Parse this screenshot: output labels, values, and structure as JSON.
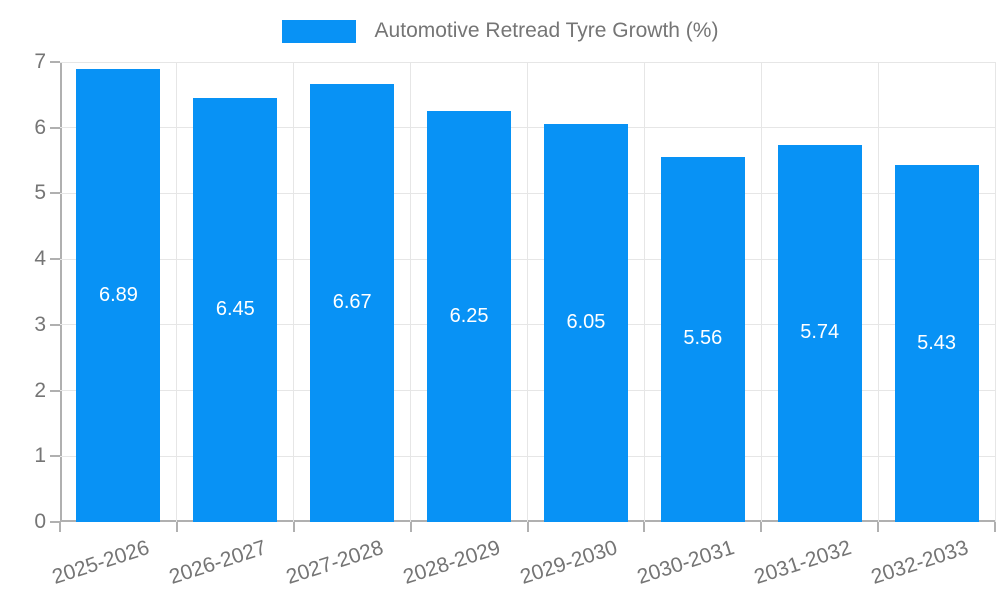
{
  "chart_data": {
    "type": "bar",
    "title": "Automotive Retread Tyre Growth (%)",
    "legend_position": "top",
    "categories": [
      "2025-2026",
      "2026-2027",
      "2027-2028",
      "2028-2029",
      "2029-2030",
      "2030-2031",
      "2031-2032",
      "2032-2033"
    ],
    "values": [
      6.89,
      6.45,
      6.67,
      6.25,
      6.05,
      5.56,
      5.74,
      5.43
    ],
    "value_labels": [
      "6.89",
      "6.45",
      "6.67",
      "6.25",
      "6.05",
      "5.56",
      "5.74",
      "5.43"
    ],
    "xlabel": "",
    "ylabel": "",
    "ylim": [
      0,
      7
    ],
    "yticks": [
      0,
      1,
      2,
      3,
      4,
      5,
      6,
      7
    ],
    "grid": true,
    "colors": {
      "bar": "#0892f5",
      "grid": "#e6e6e6",
      "axis": "#b0b0b0",
      "text": "#757575",
      "value_label": "#ffffff",
      "background": "#ffffff"
    }
  }
}
